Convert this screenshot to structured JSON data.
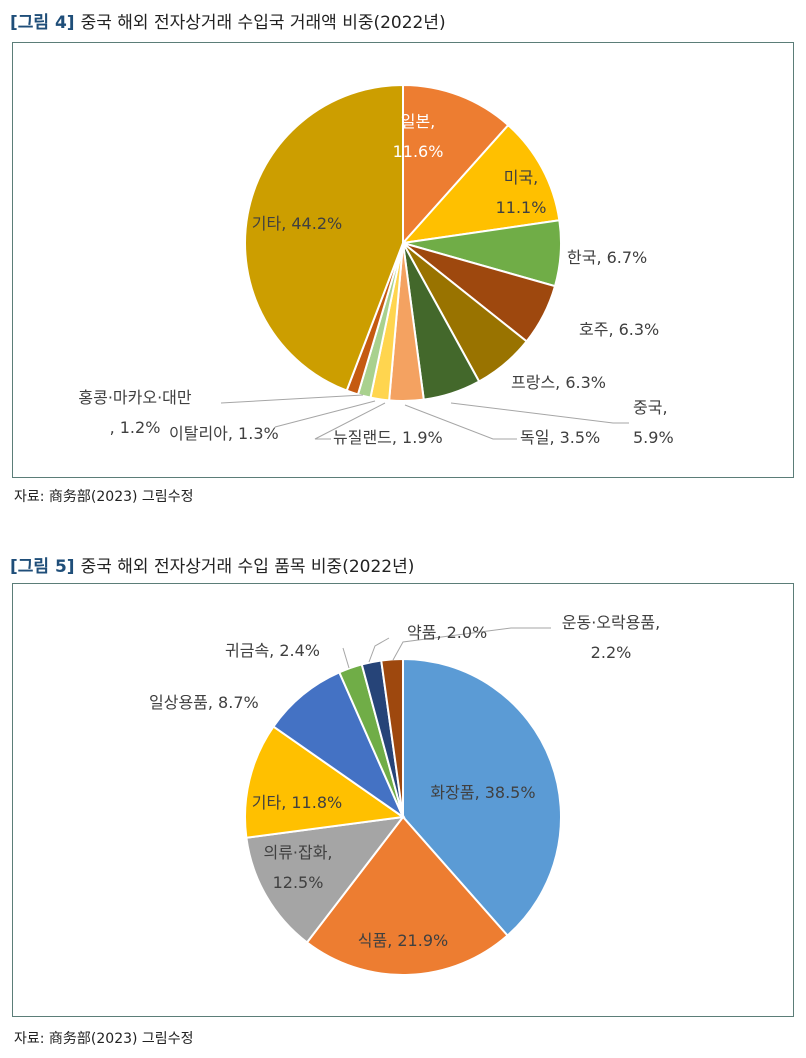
{
  "figures": [
    {
      "title_num": "[그림 4]",
      "title_text": "중국 해외 전자상거래 수입국 거래액 비중(2022년)",
      "source": "자료: 商务部(2023) 그림수정"
    },
    {
      "title_num": "[그림 5]",
      "title_text": "중국 해외 전자상거래 수입 품목 비중(2022년)",
      "source": "자료: 商务部(2023) 그림수정"
    }
  ],
  "chart_data": [
    {
      "type": "pie",
      "title": "중국 해외 전자상거래 수입국 거래액 비중(2022년)",
      "unit": "%",
      "series": [
        {
          "name": "일본",
          "value": 11.6,
          "color": "#ed7d31",
          "label_lines": [
            "일본,",
            "11.6%"
          ]
        },
        {
          "name": "미국",
          "value": 11.1,
          "color": "#ffc000",
          "label_lines": [
            "미국,",
            "11.1%"
          ]
        },
        {
          "name": "한국",
          "value": 6.7,
          "color": "#70ad47",
          "label_lines": [
            "한국, 6.7%"
          ]
        },
        {
          "name": "호주",
          "value": 6.3,
          "color": "#9e480e",
          "label_lines": [
            "호주, 6.3%"
          ]
        },
        {
          "name": "프랑스",
          "value": 6.3,
          "color": "#997300",
          "label_lines": [
            "프랑스, 6.3%"
          ]
        },
        {
          "name": "중국",
          "value": 5.9,
          "color": "#43682b",
          "label_lines": [
            "중국,",
            "5.9%"
          ]
        },
        {
          "name": "독일",
          "value": 3.5,
          "color": "#f4a261",
          "label_lines": [
            "독일, 3.5%"
          ]
        },
        {
          "name": "뉴질랜드",
          "value": 1.9,
          "color": "#ffd54f",
          "label_lines": [
            "뉴질랜드, 1.9%"
          ]
        },
        {
          "name": "이탈리아",
          "value": 1.3,
          "color": "#a9d18e",
          "label_lines": [
            "이탈리아, 1.3%"
          ]
        },
        {
          "name": "홍콩·마카오·대만",
          "value": 1.2,
          "color": "#c55a11",
          "label_lines": [
            "홍콩·마카오·대만",
            ", 1.2%"
          ]
        },
        {
          "name": "기타",
          "value": 44.2,
          "color": "#cc9e00",
          "label_lines": [
            "기타, 44.2%"
          ]
        }
      ]
    },
    {
      "type": "pie",
      "title": "중국 해외 전자상거래 수입 품목 비중(2022년)",
      "unit": "%",
      "series": [
        {
          "name": "화장품",
          "value": 38.5,
          "color": "#5b9bd5",
          "label_lines": [
            "화장품, 38.5%"
          ]
        },
        {
          "name": "식품",
          "value": 21.9,
          "color": "#ed7d31",
          "label_lines": [
            "식품, 21.9%"
          ]
        },
        {
          "name": "의류·잡화",
          "value": 12.5,
          "color": "#a5a5a5",
          "label_lines": [
            "의류·잡화,",
            "12.5%"
          ]
        },
        {
          "name": "기타",
          "value": 11.8,
          "color": "#ffc000",
          "label_lines": [
            "기타, 11.8%"
          ]
        },
        {
          "name": "일상용품",
          "value": 8.7,
          "color": "#4472c4",
          "label_lines": [
            "일상용품, 8.7%"
          ]
        },
        {
          "name": "귀금속",
          "value": 2.4,
          "color": "#70ad47",
          "label_lines": [
            "귀금속, 2.4%"
          ]
        },
        {
          "name": "약품",
          "value": 2.0,
          "color": "#264478",
          "label_lines": [
            "약품, 2.0%"
          ]
        },
        {
          "name": "운동·오락용품",
          "value": 2.2,
          "color": "#9e480e",
          "label_lines": [
            "운동·오락용품,",
            "2.2%"
          ]
        }
      ]
    }
  ]
}
